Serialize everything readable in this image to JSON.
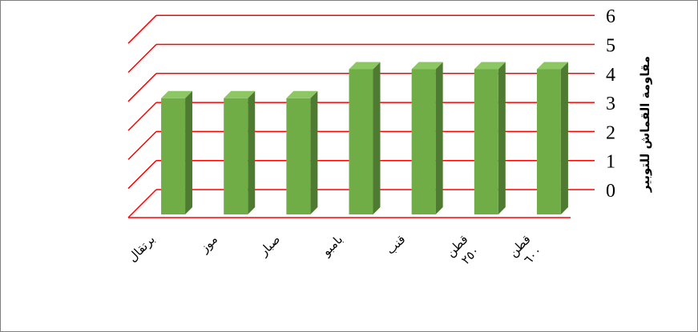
{
  "chart_data": {
    "type": "bar",
    "title": "",
    "xlabel": "",
    "ylabel": "مقاومة القماش للتوبير",
    "categories": [
      [
        "برتقال"
      ],
      [
        "موز"
      ],
      [
        "صبار"
      ],
      [
        "بامبو"
      ],
      [
        "قنب"
      ],
      [
        "قطن",
        "٢٥٠"
      ],
      [
        "قطن",
        "٦٠٠"
      ]
    ],
    "values": [
      4,
      4,
      4,
      5,
      5,
      5,
      5
    ],
    "ylim": [
      0,
      6
    ],
    "yticks": [
      "0",
      "1",
      "2",
      "3",
      "4",
      "5",
      "6"
    ],
    "grid": true,
    "legend": "none",
    "colors": {
      "bar_front": "#70ad47",
      "bar_side": "#4e7a31",
      "bar_top": "#8cc763",
      "grid": "#ff0000"
    }
  }
}
